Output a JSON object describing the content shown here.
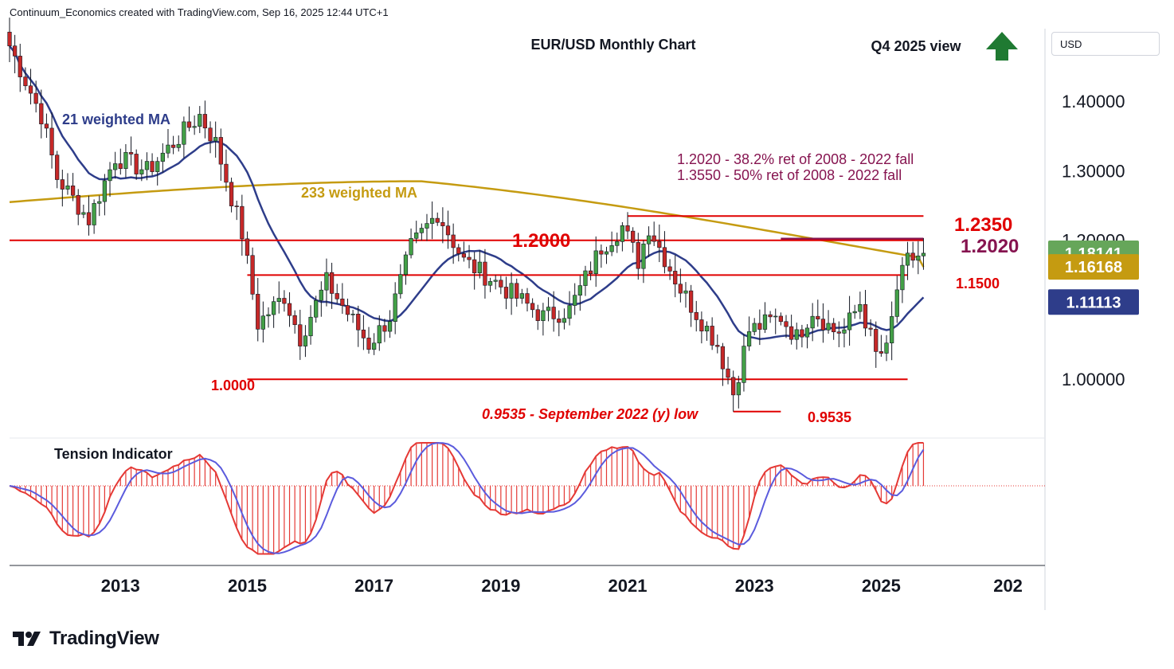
{
  "header": {
    "attribution": "Continuum_Economics created with TradingView.com, Sep 16, 2025 12:44 UTC+1"
  },
  "toolbar": {
    "currency": "USD"
  },
  "footer": {
    "brand": "TradingView",
    "logo_icon": "tradingview-logo-icon"
  },
  "colors": {
    "up": "#43a047",
    "down": "#c62828",
    "wick": "#131722",
    "ma21": "#2e3d8a",
    "ma233": "#c59b11",
    "level": "#e00000",
    "annotation": "#861450",
    "tension_up": "#e53935",
    "tension_signal": "#5b5bdd",
    "price_last": "#66a65a",
    "price_ma233": "#c59b11",
    "price_ma21": "#2e3d8a"
  },
  "chart_data": {
    "type": "candlestick",
    "title": "EUR/USD Monthly Chart",
    "outlook": "Q4 2025 view",
    "outlook_icon": "up-arrow-icon",
    "x_ticks": [
      "2013",
      "2015",
      "2017",
      "2019",
      "2021",
      "2023",
      "2025",
      "202"
    ],
    "y_ticks": [
      "1.40000",
      "1.30000",
      "1.00000"
    ],
    "y_ticks_partial": [
      "1.20000"
    ],
    "y_range": [
      0.92,
      1.5
    ],
    "x_range": [
      "2011-04",
      "2027-08"
    ],
    "ma_labels": {
      "ma21": "21 weighted MA",
      "ma233": "233 weighted MA"
    },
    "annotations": [
      "1.2020 - 38.2% ret of 2008 - 2022 fall",
      "1.3550 - 50% ret of 2008 - 2022 fall"
    ],
    "levels": [
      {
        "label": "1.2350",
        "value": 1.235,
        "from": "2021-01",
        "to": "2025-09"
      },
      {
        "label": "1.2020",
        "value": 1.202,
        "from": "2023-06",
        "to": "2025-09"
      },
      {
        "label": "1.2000",
        "value": 1.2,
        "from": "2011-04",
        "to": "2025-09"
      },
      {
        "label": "1.1500",
        "value": 1.15,
        "from": "2015-01",
        "to": "2025-06"
      },
      {
        "label": "1.0000",
        "value": 1.0,
        "from": "2015-01",
        "to": "2025-06"
      },
      {
        "label": "0.9535",
        "value": 0.9535,
        "from": "2022-09",
        "to": "2023-06"
      }
    ],
    "low_note": "0.9535 - September 2022 (y) low",
    "price_labels": {
      "last": "1.18141",
      "ma233": "1.16168",
      "ma21": "1.11113"
    },
    "price_label_values": {
      "last": 1.18141,
      "ma233": 1.16168,
      "ma21": 1.11113
    },
    "tension_label": "Tension Indicator",
    "close_anchors": [
      [
        "2011-04",
        1.48
      ],
      [
        "2011-10",
        1.38
      ],
      [
        "2012-01",
        1.29
      ],
      [
        "2012-07",
        1.23
      ],
      [
        "2012-12",
        1.32
      ],
      [
        "2013-06",
        1.3
      ],
      [
        "2014-04",
        1.38
      ],
      [
        "2014-07",
        1.34
      ],
      [
        "2014-12",
        1.21
      ],
      [
        "2015-03",
        1.08
      ],
      [
        "2015-08",
        1.12
      ],
      [
        "2015-11",
        1.06
      ],
      [
        "2016-04",
        1.14
      ],
      [
        "2016-12",
        1.05
      ],
      [
        "2017-04",
        1.09
      ],
      [
        "2017-08",
        1.19
      ],
      [
        "2018-01",
        1.24
      ],
      [
        "2018-06",
        1.17
      ],
      [
        "2018-12",
        1.14
      ],
      [
        "2019-09",
        1.09
      ],
      [
        "2020-02",
        1.1
      ],
      [
        "2020-08",
        1.19
      ],
      [
        "2020-12",
        1.22
      ],
      [
        "2021-03",
        1.17
      ],
      [
        "2021-05",
        1.22
      ],
      [
        "2021-11",
        1.13
      ],
      [
        "2022-06",
        1.05
      ],
      [
        "2022-09",
        0.98
      ],
      [
        "2022-12",
        1.07
      ],
      [
        "2023-06",
        1.09
      ],
      [
        "2023-09",
        1.06
      ],
      [
        "2023-12",
        1.1
      ],
      [
        "2024-04",
        1.07
      ],
      [
        "2024-06",
        1.07
      ],
      [
        "2024-09",
        1.11
      ],
      [
        "2024-12",
        1.035
      ],
      [
        "2025-02",
        1.04
      ],
      [
        "2025-04",
        1.13
      ],
      [
        "2025-06",
        1.17
      ],
      [
        "2025-09",
        1.18141
      ]
    ]
  }
}
